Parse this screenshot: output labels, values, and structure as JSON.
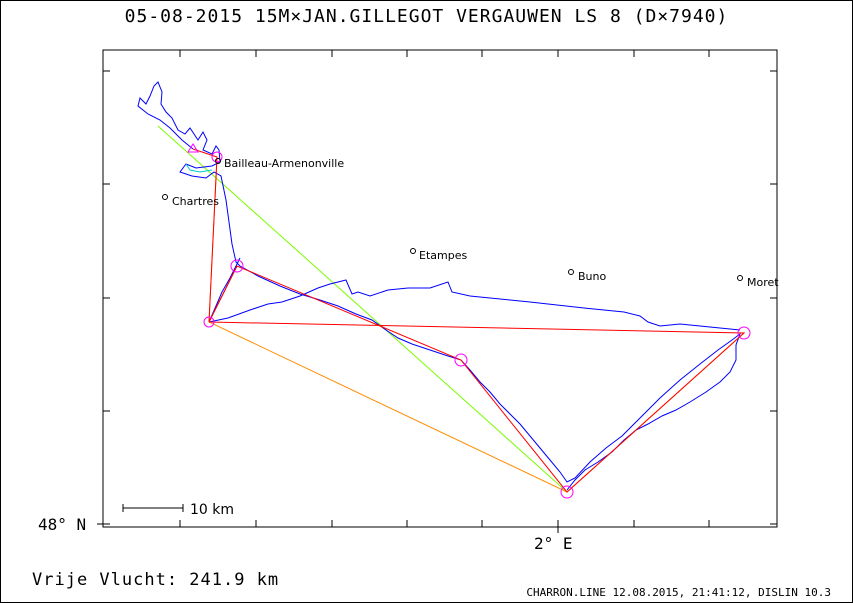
{
  "header": {
    "title": "05-08-2015   15M×JAN.GILLEGOT VERGAUWEN   LS 8 (D×7940)"
  },
  "map": {
    "towns": [
      {
        "name": "Bailleau-Armenonville"
      },
      {
        "name": "Chartres"
      },
      {
        "name": "Etampes"
      },
      {
        "name": "Buno"
      },
      {
        "name": "Moret"
      }
    ],
    "axis": {
      "lat_label": "48° N",
      "lon_label": "2° E"
    },
    "scale_bar": {
      "label": "10 km"
    },
    "colors": {
      "track": "#0000ff",
      "optimised_legs": "#ff0000",
      "declared_task": "#ff8c00",
      "straight_line": "#7cfc00",
      "turnpoint": "#ff00ff"
    }
  },
  "footer": {
    "distance": "Vrije Vlucht:  241.9 km",
    "credits": "CHARRON.LINE 12.08.2015, 21:41:12, DISLIN 10.3"
  }
}
